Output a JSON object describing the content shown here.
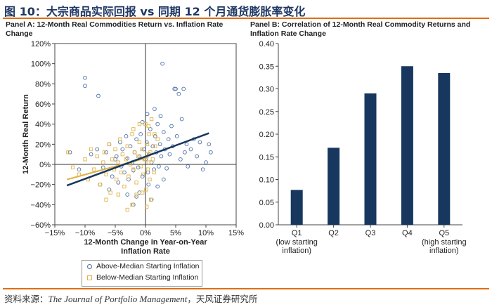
{
  "figure_title": "图 10：大宗商品实际回报 vs 同期 12 个月通货膨胀率变化",
  "source_prefix": "资料来源：",
  "source_journal": "The Journal of Portfolio Management",
  "source_suffix": "，天风证券研究所",
  "colors": {
    "above": "#4a6ea8",
    "below": "#e0b44a",
    "bar": "#17375e",
    "rule": "#e36c0a",
    "trend": "#17375e",
    "trend_below": "#e0b44a"
  },
  "chart_data": [
    {
      "type": "scatter",
      "title": "Panel A: 12-Month Real Commodities Return vs. Inflation Rate Change",
      "xlabel_line1": "12-Month Change in Year-on-Year",
      "xlabel_line2": "Inflation Rate",
      "ylabel": "12-Month Real Return",
      "xlim": [
        -15,
        15
      ],
      "ylim": [
        -60,
        120
      ],
      "xticks": [
        -15,
        -10,
        -5,
        0,
        5,
        10,
        15
      ],
      "xtick_labels": [
        "−15%",
        "−10%",
        "−5%",
        "0%",
        "5%",
        "10%",
        "15%"
      ],
      "yticks": [
        120,
        100,
        80,
        60,
        40,
        20,
        0,
        -20,
        -40,
        -60
      ],
      "ytick_labels": [
        "120%",
        "100%",
        "80%",
        "60%",
        "40%",
        "20%",
        "0%",
        "−20%",
        "−40%",
        "−60%"
      ],
      "legend": [
        "Above-Median Starting Inflation",
        "Below-Median Starting Inflation"
      ],
      "trend_above": {
        "x": [
          -13,
          10.5
        ],
        "y": [
          -21,
          31
        ]
      },
      "trend_below": {
        "x": [
          -13,
          0.5
        ],
        "y": [
          -15,
          7
        ]
      },
      "series": [
        {
          "name": "Above-Median Starting Inflation",
          "marker": "circle",
          "points": [
            [
              -12.5,
              12
            ],
            [
              -11,
              -5
            ],
            [
              -10,
              86
            ],
            [
              -10,
              78
            ],
            [
              -9,
              10
            ],
            [
              -8,
              15
            ],
            [
              -7.8,
              68
            ],
            [
              -7,
              -3
            ],
            [
              -6.5,
              12
            ],
            [
              -6,
              20
            ],
            [
              -5.5,
              -12
            ],
            [
              -5,
              5
            ],
            [
              -4.8,
              8
            ],
            [
              -4.5,
              -18
            ],
            [
              -4.2,
              22
            ],
            [
              -4,
              -2
            ],
            [
              -3.8,
              15
            ],
            [
              -3.5,
              -8
            ],
            [
              -3.2,
              28
            ],
            [
              -3,
              6
            ],
            [
              -2.8,
              -15
            ],
            [
              -2.5,
              18
            ],
            [
              -2.2,
              2
            ],
            [
              -2,
              -6
            ],
            [
              -1.8,
              12
            ],
            [
              -1.5,
              25
            ],
            [
              -1.2,
              -3
            ],
            [
              -1,
              8
            ],
            [
              -0.8,
              30
            ],
            [
              -0.5,
              -12
            ],
            [
              -0.3,
              15
            ],
            [
              0,
              5
            ],
            [
              0.2,
              22
            ],
            [
              0.4,
              -8
            ],
            [
              0.6,
              10
            ],
            [
              0.8,
              35
            ],
            [
              1,
              2
            ],
            [
              1.2,
              18
            ],
            [
              1.4,
              -5
            ],
            [
              1.6,
              28
            ],
            [
              1.8,
              12
            ],
            [
              2,
              40
            ],
            [
              2.2,
              -2
            ],
            [
              2.4,
              20
            ],
            [
              2.6,
              8
            ],
            [
              2.8,
              100
            ],
            [
              3,
              32
            ],
            [
              3.2,
              15
            ],
            [
              3.5,
              -4
            ],
            [
              3.8,
              25
            ],
            [
              4,
              10
            ],
            [
              4.3,
              38
            ],
            [
              4.5,
              18
            ],
            [
              4.8,
              75
            ],
            [
              5,
              75
            ],
            [
              5.2,
              28
            ],
            [
              5.5,
              70
            ],
            [
              5.8,
              5
            ],
            [
              6,
              45
            ],
            [
              6.3,
              75
            ],
            [
              6.5,
              12
            ],
            [
              6.8,
              20
            ],
            [
              7,
              -2
            ],
            [
              7.5,
              15
            ],
            [
              8,
              25
            ],
            [
              8.5,
              8
            ],
            [
              9,
              22
            ],
            [
              9.5,
              -5
            ],
            [
              10,
              2
            ],
            [
              10.5,
              20
            ],
            [
              10.8,
              12
            ],
            [
              -2,
              -40
            ],
            [
              -1.5,
              -32
            ],
            [
              -1,
              -28
            ],
            [
              0.5,
              -20
            ],
            [
              1,
              -35
            ],
            [
              2,
              -22
            ],
            [
              3,
              -15
            ],
            [
              -6,
              -25
            ],
            [
              -7.5,
              -20
            ],
            [
              -3,
              -30
            ],
            [
              1.5,
              55
            ],
            [
              2.5,
              48
            ],
            [
              -0.5,
              42
            ],
            [
              0.3,
              50
            ]
          ]
        },
        {
          "name": "Below-Median Starting Inflation",
          "marker": "square",
          "points": [
            [
              -12.8,
              12
            ],
            [
              -12,
              -3
            ],
            [
              -11,
              -10
            ],
            [
              -10,
              5
            ],
            [
              -9.5,
              -15
            ],
            [
              -9,
              15
            ],
            [
              -8.5,
              -5
            ],
            [
              -8,
              8
            ],
            [
              -7.5,
              -20
            ],
            [
              -7,
              2
            ],
            [
              -6.8,
              12
            ],
            [
              -6.5,
              -10
            ],
            [
              -6,
              20
            ],
            [
              -5.8,
              -28
            ],
            [
              -5.5,
              5
            ],
            [
              -5.2,
              -5
            ],
            [
              -5,
              15
            ],
            [
              -4.8,
              -15
            ],
            [
              -4.5,
              2
            ],
            [
              -4.2,
              25
            ],
            [
              -4,
              -8
            ],
            [
              -3.8,
              10
            ],
            [
              -3.5,
              -22
            ],
            [
              -3.2,
              5
            ],
            [
              -3,
              18
            ],
            [
              -2.8,
              -12
            ],
            [
              -2.5,
              0
            ],
            [
              -2.2,
              30
            ],
            [
              -2,
              -5
            ],
            [
              -1.8,
              12
            ],
            [
              -1.5,
              -18
            ],
            [
              -1.2,
              8
            ],
            [
              -1,
              22
            ],
            [
              -0.8,
              -2
            ],
            [
              -0.6,
              15
            ],
            [
              -0.4,
              -10
            ],
            [
              -0.2,
              5
            ],
            [
              0,
              40
            ],
            [
              0.1,
              -25
            ],
            [
              0.2,
              10
            ],
            [
              0.3,
              20
            ],
            [
              0.4,
              -5
            ],
            [
              0.5,
              2
            ],
            [
              0.6,
              30
            ],
            [
              0.7,
              -15
            ],
            [
              0.8,
              12
            ],
            [
              0.9,
              -35
            ],
            [
              1,
              45
            ],
            [
              1.2,
              5
            ],
            [
              1.4,
              -8
            ],
            [
              1.6,
              18
            ],
            [
              2,
              25
            ],
            [
              -3,
              -45
            ],
            [
              -2.2,
              -40
            ],
            [
              -1.5,
              -30
            ],
            [
              -0.5,
              -28
            ],
            [
              0.2,
              -42
            ],
            [
              -4.5,
              -30
            ],
            [
              -6.5,
              -35
            ],
            [
              -2,
              35
            ],
            [
              -1,
              40
            ],
            [
              0.5,
              38
            ],
            [
              1.5,
              30
            ]
          ]
        }
      ]
    },
    {
      "type": "bar",
      "title": "Panel B: Correlation of 12-Month Real Commodity Returns and Inflation Rate Change",
      "categories": [
        "Q1",
        "Q2",
        "Q3",
        "Q4",
        "Q5"
      ],
      "sublabels": [
        [
          "(low starting",
          "inflation)"
        ],
        [],
        [],
        [],
        [
          "(high starting",
          "inflation)"
        ]
      ],
      "values": [
        0.077,
        0.17,
        0.29,
        0.35,
        0.335
      ],
      "ylim": [
        0,
        0.4
      ],
      "yticks": [
        0.4,
        0.35,
        0.3,
        0.25,
        0.2,
        0.15,
        0.1,
        0.05,
        0
      ],
      "ytick_labels": [
        "0.40",
        "0.35",
        "0.30",
        "0.25",
        "0.20",
        "0.15",
        "0.10",
        "0.05",
        "0.00"
      ]
    }
  ]
}
